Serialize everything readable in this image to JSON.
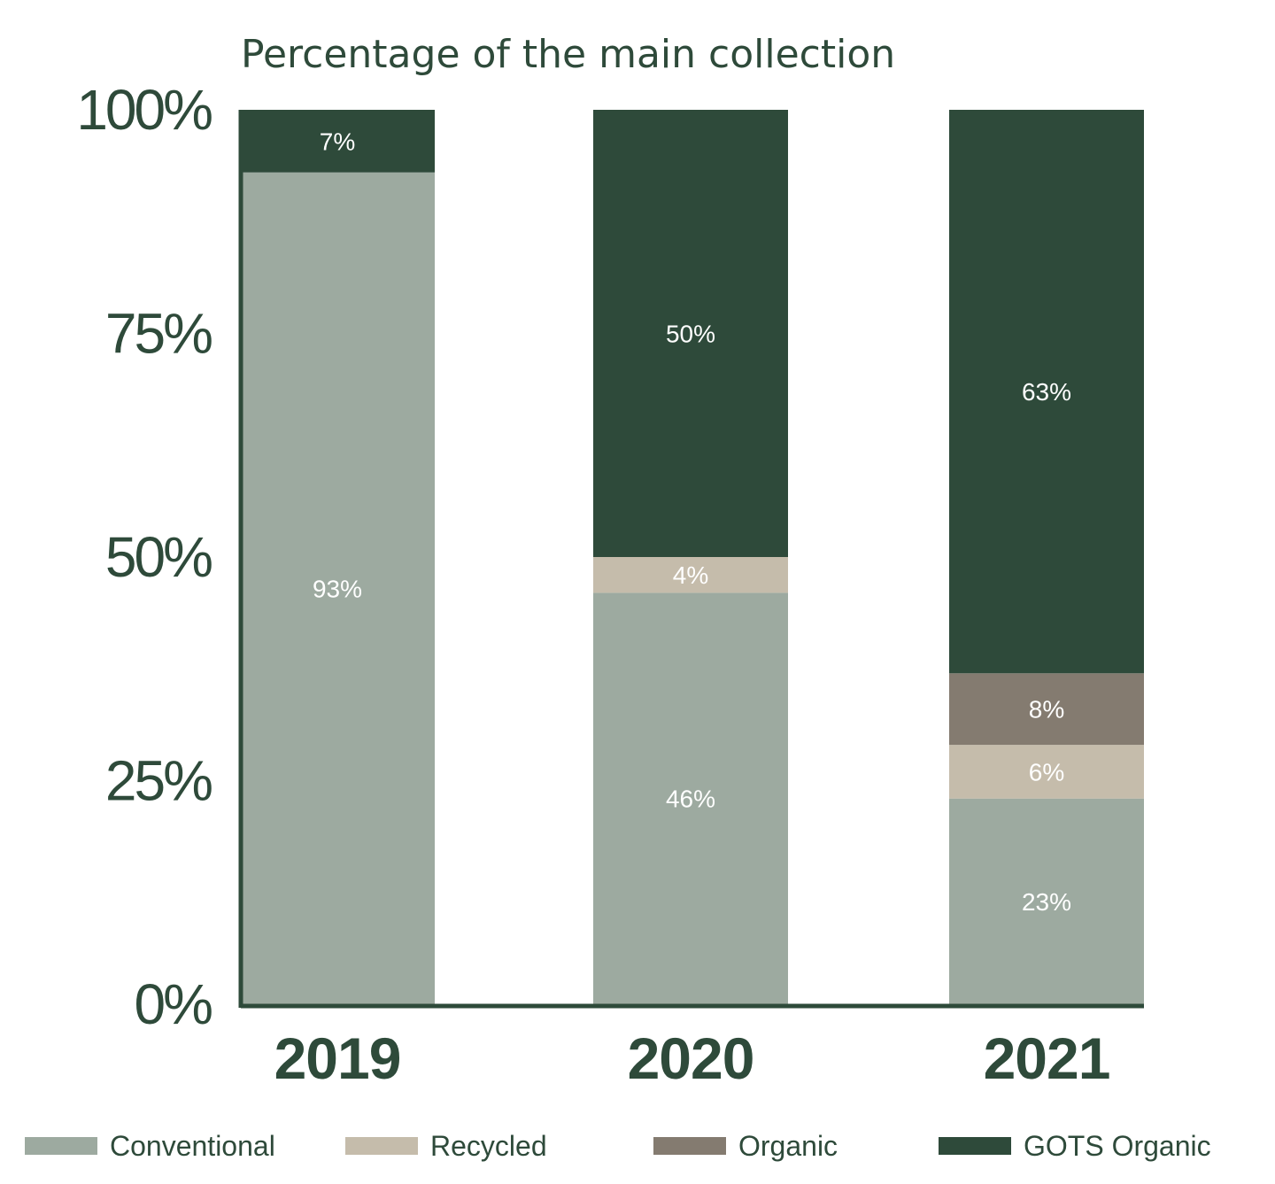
{
  "chart_data": {
    "type": "bar",
    "stacked": true,
    "title": "Percentage of the main collection",
    "xlabel": "",
    "ylabel": "",
    "categories": [
      "2019",
      "2020",
      "2021"
    ],
    "ylim": [
      0,
      100
    ],
    "yticks": [
      {
        "value": 0,
        "label": "0%"
      },
      {
        "value": 25,
        "label": "25%"
      },
      {
        "value": 50,
        "label": "50%"
      },
      {
        "value": 75,
        "label": "75%"
      },
      {
        "value": 100,
        "label": "100%"
      }
    ],
    "grid": false,
    "legend_position": "bottom",
    "series": [
      {
        "name": "Conventional",
        "color": "#9daaa0",
        "values": [
          93,
          46,
          23
        ],
        "labels": [
          "93%",
          "46%",
          "23%"
        ]
      },
      {
        "name": "Recycled",
        "color": "#c5bcab",
        "values": [
          0,
          4,
          6
        ],
        "labels": [
          "",
          "4%",
          "6%"
        ]
      },
      {
        "name": "Organic",
        "color": "#847b70",
        "values": [
          0,
          0,
          8
        ],
        "labels": [
          "",
          "",
          "8%"
        ]
      },
      {
        "name": "GOTS Organic",
        "color": "#2e4a3a",
        "values": [
          7,
          50,
          63
        ],
        "labels": [
          "7%",
          "50%",
          "63%"
        ]
      }
    ],
    "colors": {
      "text": "#2e4a3a",
      "axis": "#2e4a3a",
      "bar_label": "#ffffff"
    }
  }
}
